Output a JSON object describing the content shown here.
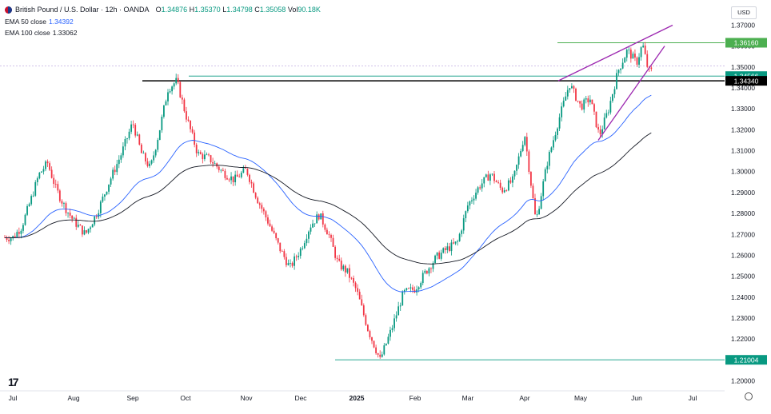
{
  "header": {
    "title": "British Pound / U.S. Dollar · 12h · OANDA",
    "open_label": "O",
    "open": "1.34876",
    "high_label": "H",
    "high": "1.35370",
    "low_label": "L",
    "low": "1.34798",
    "close_label": "C",
    "close": "1.35058",
    "vol_label": "Vol",
    "vol": "90.18K"
  },
  "indicators": {
    "ema50_label": "EMA 50 close",
    "ema50_value": "1.34392",
    "ema100_label": "EMA 100 close",
    "ema100_value": "1.33062"
  },
  "currency_button": "USD",
  "colors": {
    "up": "#089981",
    "down": "#f23645",
    "ema50": "#2962ff",
    "ema100": "#131722",
    "wedge": "#9c27b0",
    "green_level": "#4caf50",
    "teal_level": "#089981"
  },
  "chart_data": {
    "type": "candlestick",
    "timeframe": "12h",
    "ylim": [
      1.2,
      1.37
    ],
    "y_ticks": [
      "1.37000",
      "1.36000",
      "1.35000",
      "1.34000",
      "1.33000",
      "1.32000",
      "1.31000",
      "1.30000",
      "1.29000",
      "1.28000",
      "1.27000",
      "1.26000",
      "1.25000",
      "1.24000",
      "1.23000",
      "1.22000",
      "1.21000",
      "1.20000"
    ],
    "x_labels": [
      "Jul",
      "Aug",
      "Sep",
      "Oct",
      "Nov",
      "Dec",
      "2025",
      "Feb",
      "Mar",
      "Apr",
      "May",
      "Jun",
      "Jul"
    ],
    "price_path": [
      [
        "Jul",
        1.2685
      ],
      [
        "Jul",
        1.2735
      ],
      [
        "Jul",
        1.2855
      ],
      [
        "Jul",
        1.2985
      ],
      [
        "Jul",
        1.3042
      ],
      [
        "Jul",
        1.2915
      ],
      [
        "Jul",
        1.283
      ],
      [
        "Aug",
        1.2765
      ],
      [
        "Aug",
        1.27
      ],
      [
        "Aug",
        1.2805
      ],
      [
        "Aug",
        1.295
      ],
      [
        "Aug",
        1.308
      ],
      [
        "Sep",
        1.3235
      ],
      [
        "Sep",
        1.3085
      ],
      [
        "Sep",
        1.3015
      ],
      [
        "Sep",
        1.319
      ],
      [
        "Sep",
        1.3395
      ],
      [
        "Sep",
        1.3434
      ],
      [
        "Oct",
        1.3275
      ],
      [
        "Oct",
        1.3085
      ],
      [
        "Oct",
        1.306
      ],
      [
        "Oct",
        1.3
      ],
      [
        "Oct",
        1.296
      ],
      [
        "Nov",
        1.301
      ],
      [
        "Nov",
        1.287
      ],
      [
        "Nov",
        1.276
      ],
      [
        "Nov",
        1.264
      ],
      [
        "Nov",
        1.254
      ],
      [
        "Dec",
        1.263
      ],
      [
        "Dec",
        1.274
      ],
      [
        "Dec",
        1.2795
      ],
      [
        "Dec",
        1.27
      ],
      [
        "Dec",
        1.256
      ],
      [
        "Dec",
        1.252
      ],
      [
        "2025",
        1.243
      ],
      [
        "2025",
        1.224
      ],
      [
        "2025",
        1.21
      ],
      [
        "2025",
        1.225
      ],
      [
        "2025",
        1.242
      ],
      [
        "Feb",
        1.244
      ],
      [
        "Feb",
        1.252
      ],
      [
        "Feb",
        1.259
      ],
      [
        "Feb",
        1.263
      ],
      [
        "Feb",
        1.266
      ],
      [
        "Mar",
        1.284
      ],
      [
        "Mar",
        1.293
      ],
      [
        "Mar",
        1.299
      ],
      [
        "Mar",
        1.291
      ],
      [
        "Mar",
        1.296
      ],
      [
        "Apr",
        1.318
      ],
      [
        "Apr",
        1.276
      ],
      [
        "Apr",
        1.304
      ],
      [
        "Apr",
        1.324
      ],
      [
        "Apr",
        1.342
      ],
      [
        "May",
        1.331
      ],
      [
        "May",
        1.335
      ],
      [
        "May",
        1.317
      ],
      [
        "May",
        1.33
      ],
      [
        "May",
        1.348
      ],
      [
        "May",
        1.358
      ],
      [
        "Jun",
        1.352
      ],
      [
        "Jun",
        1.361
      ],
      [
        "Jun",
        1.348
      ]
    ],
    "horizontal_levels": [
      {
        "value": 1.3616,
        "label": "1.36160",
        "color": "#4caf50"
      },
      {
        "value": 1.34566,
        "label": "1.34566",
        "color": "#089981"
      },
      {
        "value": 1.3434,
        "label": "1.34340",
        "color": "#000000"
      },
      {
        "value": 1.21004,
        "label": "1.21004",
        "color": "#089981"
      }
    ],
    "current_price": 1.35058,
    "rising_wedge": {
      "upper": [
        [
          "Apr",
          1.3434
        ],
        [
          "Jun",
          1.37
        ]
      ],
      "lower": [
        [
          "May",
          1.315
        ],
        [
          "Jun",
          1.36
        ]
      ]
    },
    "series": [
      {
        "name": "EMA 50 close",
        "color": "#2962ff"
      },
      {
        "name": "EMA 100 close",
        "color": "#131722"
      }
    ]
  }
}
